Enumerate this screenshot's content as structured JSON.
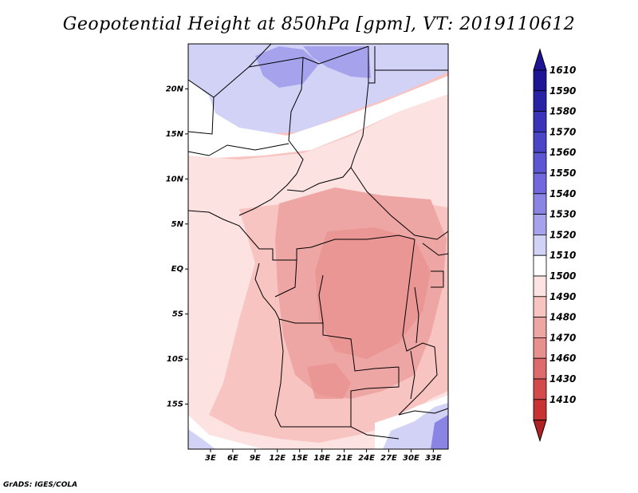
{
  "title": "Geopotential Height at 850hPa [gpm], VT: 2019110612",
  "credit": "GrADS: IGES/COLA",
  "map": {
    "lon_range": [
      0,
      35
    ],
    "lat_range": [
      -20,
      25
    ],
    "lat_ticks": [
      {
        "value": 20,
        "label": "20N"
      },
      {
        "value": 15,
        "label": "15N"
      },
      {
        "value": 10,
        "label": "10N"
      },
      {
        "value": 5,
        "label": "5N"
      },
      {
        "value": 0,
        "label": "EQ"
      },
      {
        "value": -5,
        "label": "5S"
      },
      {
        "value": -10,
        "label": "10S"
      },
      {
        "value": -15,
        "label": "15S"
      }
    ],
    "lon_ticks": [
      {
        "value": 3,
        "label": "3E"
      },
      {
        "value": 6,
        "label": "6E"
      },
      {
        "value": 9,
        "label": "9E"
      },
      {
        "value": 12,
        "label": "12E"
      },
      {
        "value": 15,
        "label": "15E"
      },
      {
        "value": 18,
        "label": "18E"
      },
      {
        "value": 21,
        "label": "21E"
      },
      {
        "value": 24,
        "label": "24E"
      },
      {
        "value": 27,
        "label": "27E"
      },
      {
        "value": 30,
        "label": "30E"
      },
      {
        "value": 33,
        "label": "33E"
      }
    ]
  },
  "colorbar": {
    "units": "gpm",
    "levels": [
      {
        "label": "1610",
        "color": "#1e1496"
      },
      {
        "label": "1590",
        "color": "#2a22a6"
      },
      {
        "label": "1580",
        "color": "#3a32b8"
      },
      {
        "label": "1570",
        "color": "#4a44c6"
      },
      {
        "label": "1560",
        "color": "#5c56d2"
      },
      {
        "label": "1550",
        "color": "#7068dc"
      },
      {
        "label": "1540",
        "color": "#8a84e4"
      },
      {
        "label": "1530",
        "color": "#a6a2ec"
      },
      {
        "label": "1520",
        "color": "#d2d2f6"
      },
      {
        "label": "1510",
        "color": "#ffffff"
      },
      {
        "label": "1500",
        "color": "#fde2e2"
      },
      {
        "label": "1490",
        "color": "#f8c4c2"
      },
      {
        "label": "1480",
        "color": "#eea6a4"
      },
      {
        "label": "1470",
        "color": "#e8908e"
      },
      {
        "label": "1460",
        "color": "#dd6b6b"
      },
      {
        "label": "1430",
        "color": "#d44a4a"
      },
      {
        "label": "1410",
        "color": "#c83232"
      }
    ],
    "bottom_color": "#b02222"
  }
}
